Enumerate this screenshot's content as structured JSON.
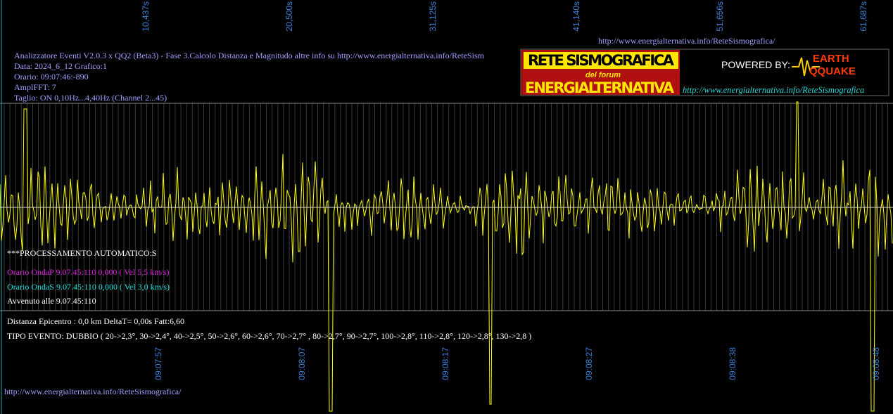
{
  "top_url": "http://www.energialternativa.info/ReteSismografica/",
  "header": {
    "lines": [
      "Analizzatore Eventi V2.0.3 x QQ2 (Beta3) - Fase 3.Calcolo Distanza e Magnitudo altre info su http://www.energialternativa.info/ReteSism",
      "Data: 2024_6_12 Grafico:1",
      "Orario: 09:07:46:-890",
      "AmplFFT: 7",
      "Taglio: ON 0,10Hz...4,40Hz       (Channel 2...45)"
    ]
  },
  "logo": {
    "title": "RETE SISMOGRAFICA",
    "subtitle": "del forum",
    "name": "ENERGIALTERNATIVA",
    "powered": "POWERED BY:",
    "brand_top": "EARTH",
    "brand_bottom": "QQUAKE",
    "url": "http://www.energialternativa.info/ReteSismografica"
  },
  "top_axis": [
    "10,437s",
    "20,500s",
    "31,125s",
    "41,140s",
    "51,656s",
    "61,687s"
  ],
  "bottom_axis": [
    "09:07:57",
    "09:08:07",
    "09:08:17",
    "09:08:27",
    "09:08:38",
    "09:08:48"
  ],
  "processing": {
    "title": "***PROCESSAMENTO AUTOMATICO:S",
    "onda_p": "Orario OndaP 9.07.45:110  0,000 ( Vel 5,5 km/s)",
    "onda_s": "Orario OndaS 9.07.45:110  0,000 ( Vel 3,0 km/s)",
    "avvenuto": "Avvenuto alle 9.07.45:110"
  },
  "result": {
    "distance": "Distanza Epicentro : 0,0 km DeltaT= 0,00s  Fatt:6,60",
    "event": "TIPO EVENTO: DUBBIO ( 20->2,3°, 30->2,4°, 40->2,5°, 50->2,6°, 60->2,6°, 70->2,7° , 80->2,7°, 90->2,7°, 100->2,8°, 110->2,8°, 120->2,8°, 130->2,8 )"
  },
  "footer_url": "http://www.energialternativa.info/ReteSismografica/"
}
